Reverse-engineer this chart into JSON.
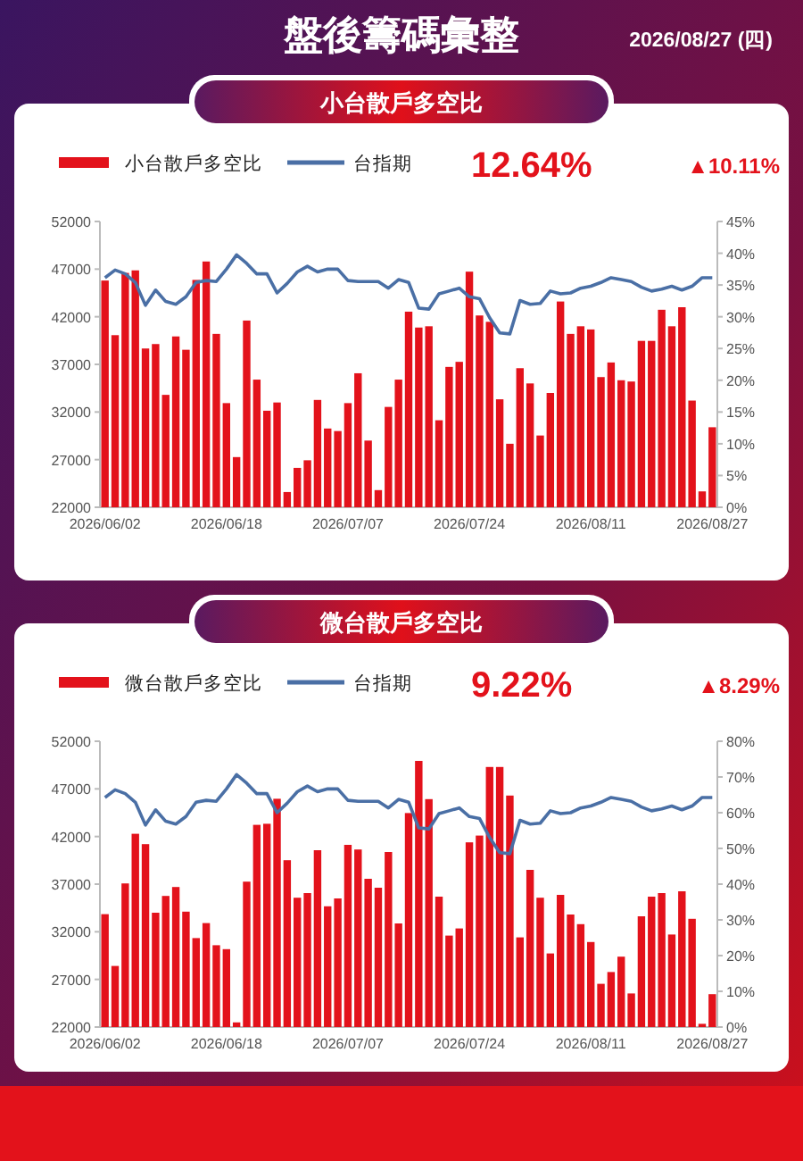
{
  "chart_data": [
    {
      "type": "bar",
      "title": "小台散戶多空比",
      "legend": "top",
      "annotations": [
        "盤後籌碼彙整",
        "2026/08/27 (四)",
        "12.64%",
        "▲10.11%"
      ],
      "categories": [
        "2026/06/02",
        null,
        null,
        null,
        null,
        null,
        null,
        null,
        null,
        null,
        null,
        null,
        "2026/06/18",
        null,
        null,
        null,
        null,
        null,
        null,
        null,
        null,
        null,
        null,
        null,
        "2026/07/07",
        null,
        null,
        null,
        null,
        null,
        null,
        null,
        null,
        null,
        null,
        null,
        "2026/07/24",
        null,
        null,
        null,
        null,
        null,
        null,
        null,
        null,
        null,
        null,
        null,
        "2026/08/11",
        null,
        null,
        null,
        null,
        null,
        null,
        null,
        null,
        null,
        null,
        null,
        "2026/08/27"
      ],
      "ylim": [
        22000,
        52000
      ],
      "yticks": [
        22000,
        27000,
        32000,
        37000,
        42000,
        47000,
        52000
      ],
      "y2lim": [
        0,
        45
      ],
      "y2ticks": [
        {
          "value": 0,
          "label": "0%"
        },
        {
          "value": 5,
          "label": "5%"
        },
        {
          "value": 10,
          "label": "10%"
        },
        {
          "value": 15,
          "label": "15%"
        },
        {
          "value": 20,
          "label": "20%"
        },
        {
          "value": 25,
          "label": "25%"
        },
        {
          "value": 30,
          "label": "30%"
        },
        {
          "value": 35,
          "label": "35%"
        },
        {
          "value": 40,
          "label": "40%"
        },
        {
          "value": 45,
          "label": "45%"
        }
      ],
      "series": [
        {
          "name": "小台散戶多空比",
          "axis": "y2",
          "color": "#e3121b",
          "values": [
            35.7,
            27.1,
            36.9,
            37.3,
            25.0,
            25.7,
            17.7,
            26.9,
            24.8,
            35.8,
            38.7,
            27.3,
            16.4,
            7.9,
            29.4,
            20.1,
            15.2,
            16.5,
            2.4,
            6.2,
            7.4,
            16.9,
            12.4,
            12.0,
            16.4,
            21.1,
            10.5,
            2.7,
            15.8,
            20.1,
            30.8,
            28.3,
            28.5,
            13.7,
            22.1,
            22.9,
            37.1,
            30.2,
            29.2,
            17.0,
            10.0,
            21.9,
            19.5,
            11.3,
            18.0,
            32.4,
            27.3,
            28.5,
            28.0,
            20.5,
            22.8,
            20.0,
            19.8,
            26.2,
            26.2,
            31.1,
            28.5,
            31.5,
            16.8,
            2.5,
            12.6
          ]
        },
        {
          "name": "台指期",
          "type": "line",
          "color": "#4a6fa5",
          "values": [
            46100,
            46900,
            46500,
            45600,
            43200,
            44800,
            43600,
            43300,
            44100,
            45600,
            45800,
            45700,
            47000,
            48500,
            47600,
            46500,
            46500,
            44500,
            45500,
            46700,
            47300,
            46700,
            47000,
            47000,
            45800,
            45700,
            45700,
            45700,
            45000,
            45900,
            45600,
            42900,
            42800,
            44400,
            44700,
            45000,
            44100,
            43900,
            41900,
            40300,
            40200,
            43700,
            43300,
            43400,
            44700,
            44400,
            44500,
            45000,
            45200,
            45600,
            46100,
            45900,
            45700,
            45100,
            44700,
            44900,
            45200,
            44800,
            45200,
            46100,
            46100
          ]
        }
      ]
    },
    {
      "type": "bar",
      "title": "微台散戶多空比",
      "legend": "top",
      "annotations": [
        "9.22%",
        "▲8.29%"
      ],
      "categories": [
        "2026/06/02",
        null,
        null,
        null,
        null,
        null,
        null,
        null,
        null,
        null,
        null,
        null,
        "2026/06/18",
        null,
        null,
        null,
        null,
        null,
        null,
        null,
        null,
        null,
        null,
        null,
        "2026/07/07",
        null,
        null,
        null,
        null,
        null,
        null,
        null,
        null,
        null,
        null,
        null,
        "2026/07/24",
        null,
        null,
        null,
        null,
        null,
        null,
        null,
        null,
        null,
        null,
        null,
        "2026/08/11",
        null,
        null,
        null,
        null,
        null,
        null,
        null,
        null,
        null,
        null,
        null,
        "2026/08/27"
      ],
      "ylim": [
        22000,
        52000
      ],
      "yticks": [
        22000,
        27000,
        32000,
        37000,
        42000,
        47000,
        52000
      ],
      "y2lim": [
        0,
        80
      ],
      "y2ticks": [
        {
          "value": 0,
          "label": "0%"
        },
        {
          "value": 10,
          "label": "10%"
        },
        {
          "value": 20,
          "label": "20%"
        },
        {
          "value": 30,
          "label": "30%"
        },
        {
          "value": 40,
          "label": "40%"
        },
        {
          "value": 50,
          "label": "50%"
        },
        {
          "value": 60,
          "label": "60%"
        },
        {
          "value": 70,
          "label": "70%"
        },
        {
          "value": 80,
          "label": "80%"
        }
      ],
      "series": [
        {
          "name": "微台散戶多空比",
          "axis": "y2",
          "color": "#e3121b",
          "values": [
            31.6,
            17.1,
            40.2,
            54.1,
            51.2,
            32.0,
            36.7,
            39.2,
            32.3,
            24.9,
            29.1,
            22.9,
            21.8,
            1.3,
            40.7,
            56.6,
            56.9,
            63.9,
            46.7,
            36.2,
            37.5,
            49.5,
            33.8,
            36.0,
            51.0,
            49.7,
            41.5,
            39.0,
            49.0,
            29.0,
            59.9,
            74.5,
            63.8,
            36.5,
            25.6,
            27.6,
            51.7,
            53.6,
            72.8,
            72.8,
            64.8,
            25.1,
            44.0,
            36.2,
            20.6,
            37.0,
            31.5,
            28.8,
            23.8,
            12.1,
            15.4,
            19.7,
            9.4,
            31.0,
            36.5,
            37.5,
            25.9,
            38.0,
            30.3,
            0.9,
            9.2
          ]
        },
        {
          "name": "台指期",
          "type": "line",
          "color": "#4a6fa5",
          "values": [
            46100,
            46900,
            46500,
            45600,
            43200,
            44800,
            43600,
            43300,
            44100,
            45600,
            45800,
            45700,
            47000,
            48500,
            47600,
            46500,
            46500,
            44500,
            45500,
            46700,
            47300,
            46700,
            47000,
            47000,
            45800,
            45700,
            45700,
            45700,
            45000,
            45900,
            45600,
            42900,
            42800,
            44400,
            44700,
            45000,
            44100,
            43900,
            41900,
            40300,
            40200,
            43700,
            43300,
            43400,
            44700,
            44400,
            44500,
            45000,
            45200,
            45600,
            46100,
            45900,
            45700,
            45100,
            44700,
            44900,
            45200,
            44800,
            45200,
            46100,
            46100
          ]
        }
      ]
    }
  ]
}
